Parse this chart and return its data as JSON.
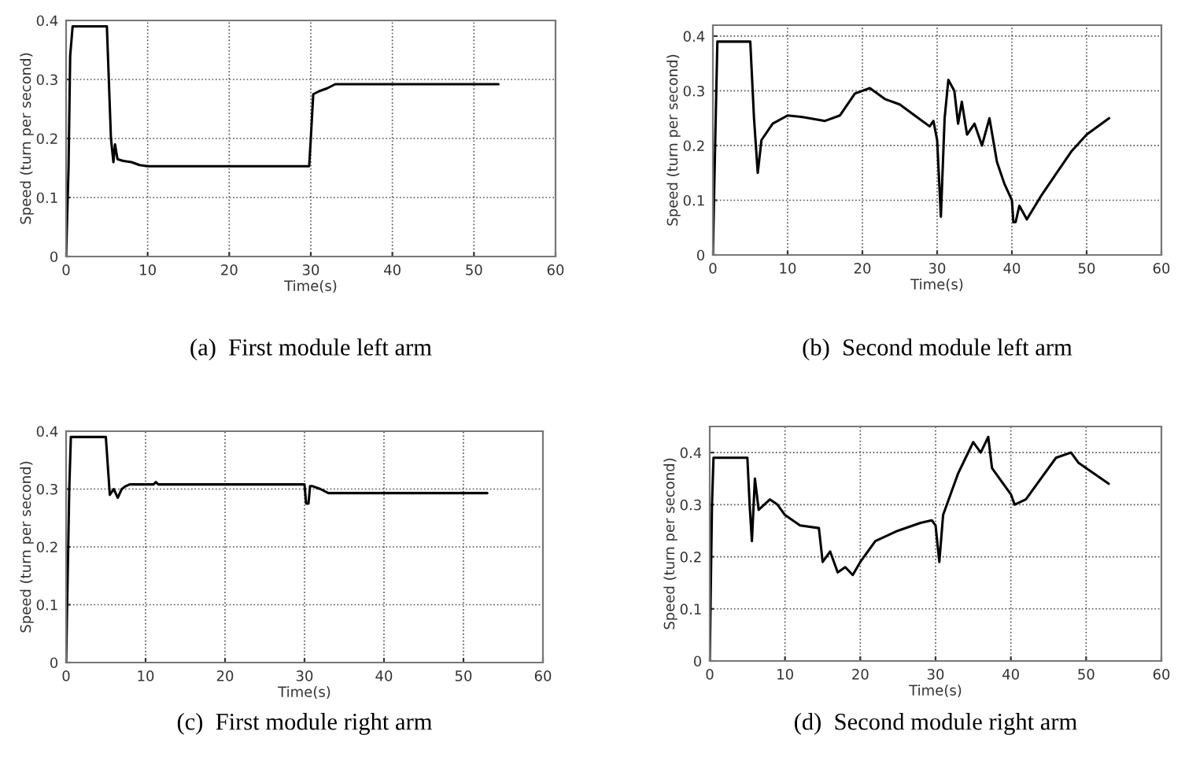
{
  "chart_data": [
    {
      "type": "line",
      "title": "(a)  First module left arm",
      "xlabel": "Time(s)",
      "ylabel": "Speed (turn per second)",
      "xlim": [
        0,
        60
      ],
      "ylim": [
        0,
        0.4
      ],
      "xticks": [
        0,
        10,
        20,
        30,
        40,
        50,
        60
      ],
      "yticks": [
        0,
        0.1,
        0.2,
        0.3,
        0.4
      ],
      "grid": true,
      "legend": false,
      "series": [
        {
          "color": "#000000",
          "x": [
            0,
            0.3,
            0.5,
            0.8,
            5,
            5.5,
            5.8,
            6.0,
            6.3,
            7,
            8,
            9,
            10,
            20,
            29.8,
            30,
            30.3,
            31,
            32,
            33,
            53
          ],
          "values": [
            0,
            0.15,
            0.34,
            0.39,
            0.39,
            0.2,
            0.16,
            0.19,
            0.165,
            0.162,
            0.16,
            0.155,
            0.153,
            0.153,
            0.153,
            0.2,
            0.275,
            0.28,
            0.285,
            0.292,
            0.292
          ]
        }
      ]
    },
    {
      "type": "line",
      "title": "(b)  Second module left arm",
      "xlabel": "Time(s)",
      "ylabel": "Speed (turn per second)",
      "xlim": [
        0,
        60
      ],
      "ylim": [
        0,
        0.42
      ],
      "xticks": [
        0,
        10,
        20,
        30,
        40,
        50,
        60
      ],
      "yticks": [
        0,
        0.1,
        0.2,
        0.3,
        0.4
      ],
      "grid": true,
      "legend": false,
      "series": [
        {
          "color": "#000000",
          "x": [
            0,
            0.3,
            0.6,
            5,
            5.5,
            6,
            6.5,
            8,
            10,
            12,
            15,
            17,
            19,
            21,
            23,
            25,
            27,
            29,
            29.5,
            30,
            30.5,
            31,
            31.5,
            32.3,
            32.8,
            33.3,
            34,
            35,
            36,
            37,
            38,
            39,
            40,
            40.2,
            40.5,
            41,
            42,
            44,
            46,
            48,
            50,
            53
          ],
          "values": [
            0,
            0.2,
            0.39,
            0.39,
            0.25,
            0.15,
            0.21,
            0.24,
            0.255,
            0.252,
            0.245,
            0.255,
            0.295,
            0.305,
            0.285,
            0.275,
            0.255,
            0.235,
            0.245,
            0.21,
            0.07,
            0.25,
            0.32,
            0.3,
            0.24,
            0.28,
            0.22,
            0.24,
            0.2,
            0.25,
            0.17,
            0.13,
            0.1,
            0.06,
            0.06,
            0.09,
            0.065,
            0.11,
            0.15,
            0.19,
            0.22,
            0.25
          ]
        }
      ]
    },
    {
      "type": "line",
      "title": "(c)  First module right arm",
      "xlabel": "Time(s)",
      "ylabel": "Speed (turn per second)",
      "xlim": [
        0,
        60
      ],
      "ylim": [
        0,
        0.4
      ],
      "xticks": [
        0,
        10,
        20,
        30,
        40,
        50,
        60
      ],
      "yticks": [
        0,
        0.1,
        0.2,
        0.3,
        0.4
      ],
      "grid": true,
      "legend": false,
      "series": [
        {
          "color": "#000000",
          "x": [
            0,
            0.4,
            0.6,
            5,
            5.5,
            6,
            6.5,
            7,
            7.5,
            8,
            11,
            11.3,
            11.6,
            14,
            30,
            30.2,
            30.5,
            30.7,
            31,
            32,
            33,
            53
          ],
          "values": [
            0,
            0.3,
            0.39,
            0.39,
            0.29,
            0.3,
            0.285,
            0.3,
            0.305,
            0.308,
            0.308,
            0.312,
            0.308,
            0.308,
            0.308,
            0.275,
            0.275,
            0.305,
            0.305,
            0.3,
            0.293,
            0.293
          ]
        }
      ]
    },
    {
      "type": "line",
      "title": "(d)  Second module right arm",
      "xlabel": "Time(s)",
      "ylabel": "Speed (turn per second)",
      "xlim": [
        0,
        60
      ],
      "ylim": [
        0,
        0.45
      ],
      "xticks": [
        0,
        10,
        20,
        30,
        40,
        50,
        60
      ],
      "yticks": [
        0,
        0.1,
        0.2,
        0.3,
        0.4
      ],
      "grid": true,
      "legend": false,
      "series": [
        {
          "color": "#000000",
          "x": [
            0,
            0.3,
            0.5,
            5,
            5.3,
            5.6,
            6,
            6.5,
            8,
            9,
            10,
            12,
            14.5,
            15,
            16,
            17,
            18,
            19,
            20,
            22,
            25,
            28,
            29.5,
            30,
            30.5,
            31,
            32,
            33,
            34,
            35,
            36,
            37,
            37.5,
            38,
            40,
            40.5,
            42,
            44,
            46,
            48,
            49,
            51,
            53
          ],
          "values": [
            0,
            0.3,
            0.39,
            0.39,
            0.3,
            0.23,
            0.35,
            0.29,
            0.31,
            0.3,
            0.28,
            0.26,
            0.255,
            0.19,
            0.21,
            0.17,
            0.18,
            0.165,
            0.19,
            0.23,
            0.25,
            0.265,
            0.27,
            0.26,
            0.19,
            0.28,
            0.32,
            0.36,
            0.39,
            0.42,
            0.4,
            0.43,
            0.37,
            0.36,
            0.32,
            0.3,
            0.31,
            0.35,
            0.39,
            0.4,
            0.38,
            0.36,
            0.34
          ]
        }
      ]
    }
  ]
}
